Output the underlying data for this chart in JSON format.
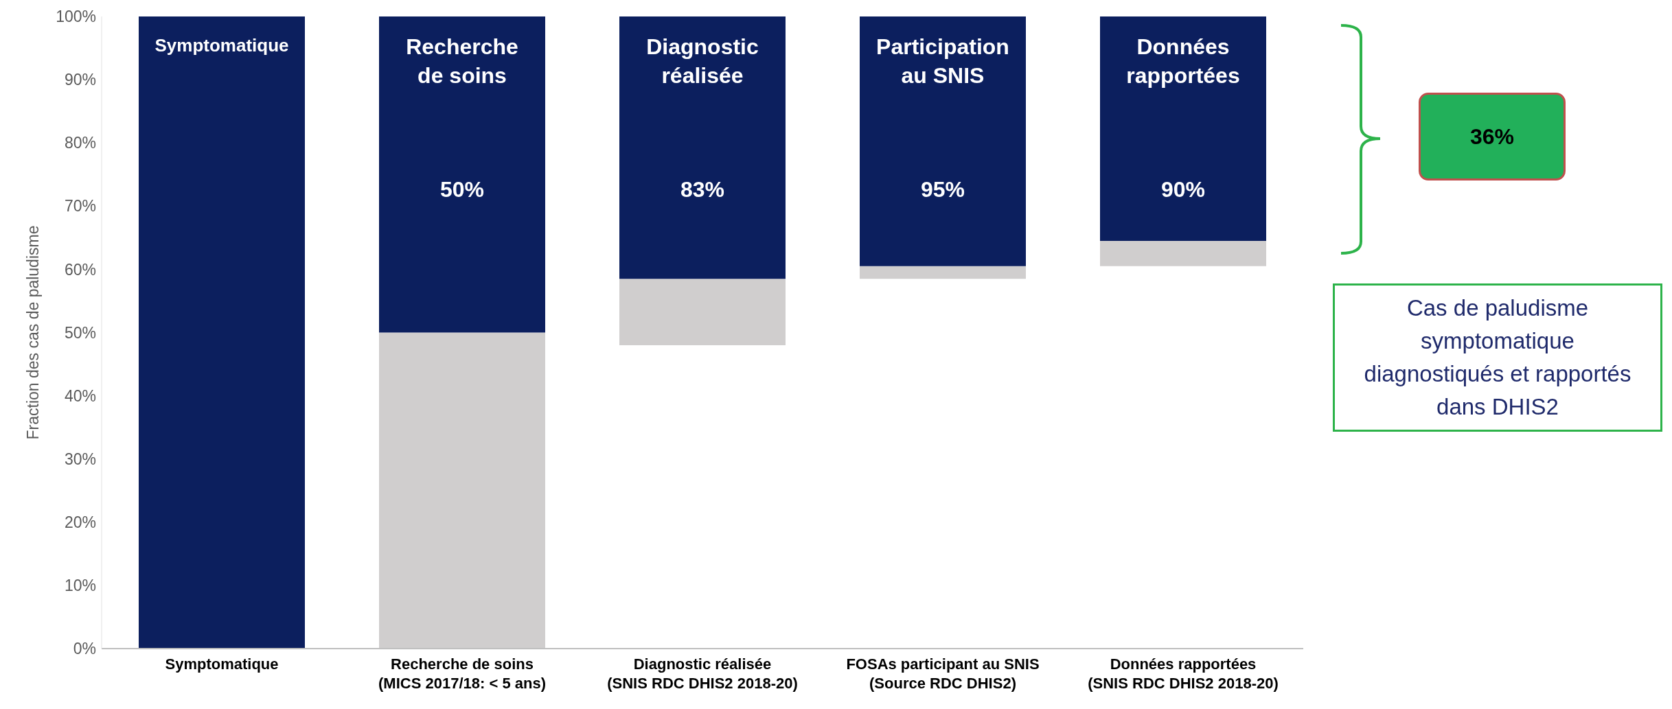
{
  "chart_data": {
    "type": "bar",
    "ylabel": "Fraction des cas de paludisme",
    "categories": [
      "Symptomatique",
      "Recherche de soins\n(MICS 2017/18: < 5 ans)",
      "Diagnostic réalisée\n(SNIS RDC DHIS2 2018-20)",
      "FOSAs participant au SNIS\n(Source RDC DHIS2)",
      "Données rapportées\n(SNIS RDC DHIS2 2018-20)"
    ],
    "series": [
      {
        "color": "#d0cece",
        "base": [
          null,
          0,
          48,
          58.5,
          60.5
        ],
        "values": [
          null,
          50,
          10.5,
          2,
          4
        ]
      },
      {
        "color": "#0c1f5e",
        "base": [
          0,
          50,
          58.5,
          60.5,
          64.5
        ],
        "values": [
          100,
          50,
          41.5,
          39.5,
          35.5
        ]
      }
    ],
    "ylim": [
      0,
      100
    ],
    "yticks": [
      {
        "value": 0,
        "label": "0%"
      },
      {
        "value": 10,
        "label": "10%"
      },
      {
        "value": 20,
        "label": "20%"
      },
      {
        "value": 30,
        "label": "30%"
      },
      {
        "value": 40,
        "label": "40%"
      },
      {
        "value": 50,
        "label": "50%"
      },
      {
        "value": 60,
        "label": "60%"
      },
      {
        "value": 70,
        "label": "70%"
      },
      {
        "value": 80,
        "label": "80%"
      },
      {
        "value": 90,
        "label": "90%"
      },
      {
        "value": 100,
        "label": "100%"
      }
    ],
    "grid": false,
    "legend": false,
    "annotations": [
      "Symptomatique",
      "Recherche de soins",
      "Diagnostic réalisée",
      "Participation au SNIS",
      "Données rapportées",
      "50%",
      "83%",
      "95%",
      "90%",
      "36%",
      "Cas de paludisme symptomatique diagnostiqués et rapportés dans DHIS2"
    ]
  }
}
